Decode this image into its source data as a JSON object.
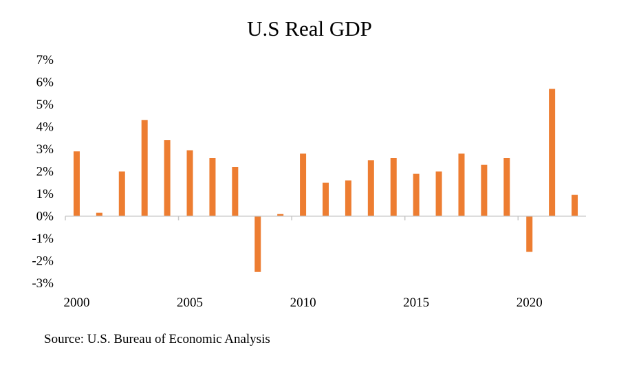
{
  "chart_data": {
    "type": "bar",
    "title": "U.S Real GDP",
    "xlabel": "",
    "ylabel": "",
    "x": [
      2000,
      2001,
      2002,
      2003,
      2004,
      2005,
      2006,
      2007,
      2008,
      2009,
      2010,
      2011,
      2012,
      2013,
      2014,
      2015,
      2016,
      2017,
      2018,
      2019,
      2020,
      2021,
      2022
    ],
    "values": [
      2.9,
      0.15,
      2.0,
      4.3,
      3.4,
      2.95,
      2.6,
      2.2,
      -2.5,
      0.1,
      2.8,
      1.5,
      1.6,
      2.5,
      2.6,
      1.9,
      2.0,
      2.8,
      2.3,
      2.6,
      -1.6,
      5.7,
      0.95
    ],
    "x_tick_labels": [
      "2000",
      "2005",
      "2010",
      "2015",
      "2020"
    ],
    "y_tick_values": [
      7,
      6,
      5,
      4,
      3,
      2,
      1,
      0,
      -1,
      -2,
      -3
    ],
    "y_tick_labels": [
      "7%",
      "6%",
      "5%",
      "4%",
      "3%",
      "2%",
      "1%",
      "0%",
      "-1%",
      "-2%",
      "-3%"
    ],
    "ylim": [
      -3,
      7
    ],
    "unit": "%",
    "grid": false,
    "legend": "none",
    "bar_color": "#ED7D31",
    "source": "Source: U.S. Bureau of Economic Analysis"
  }
}
